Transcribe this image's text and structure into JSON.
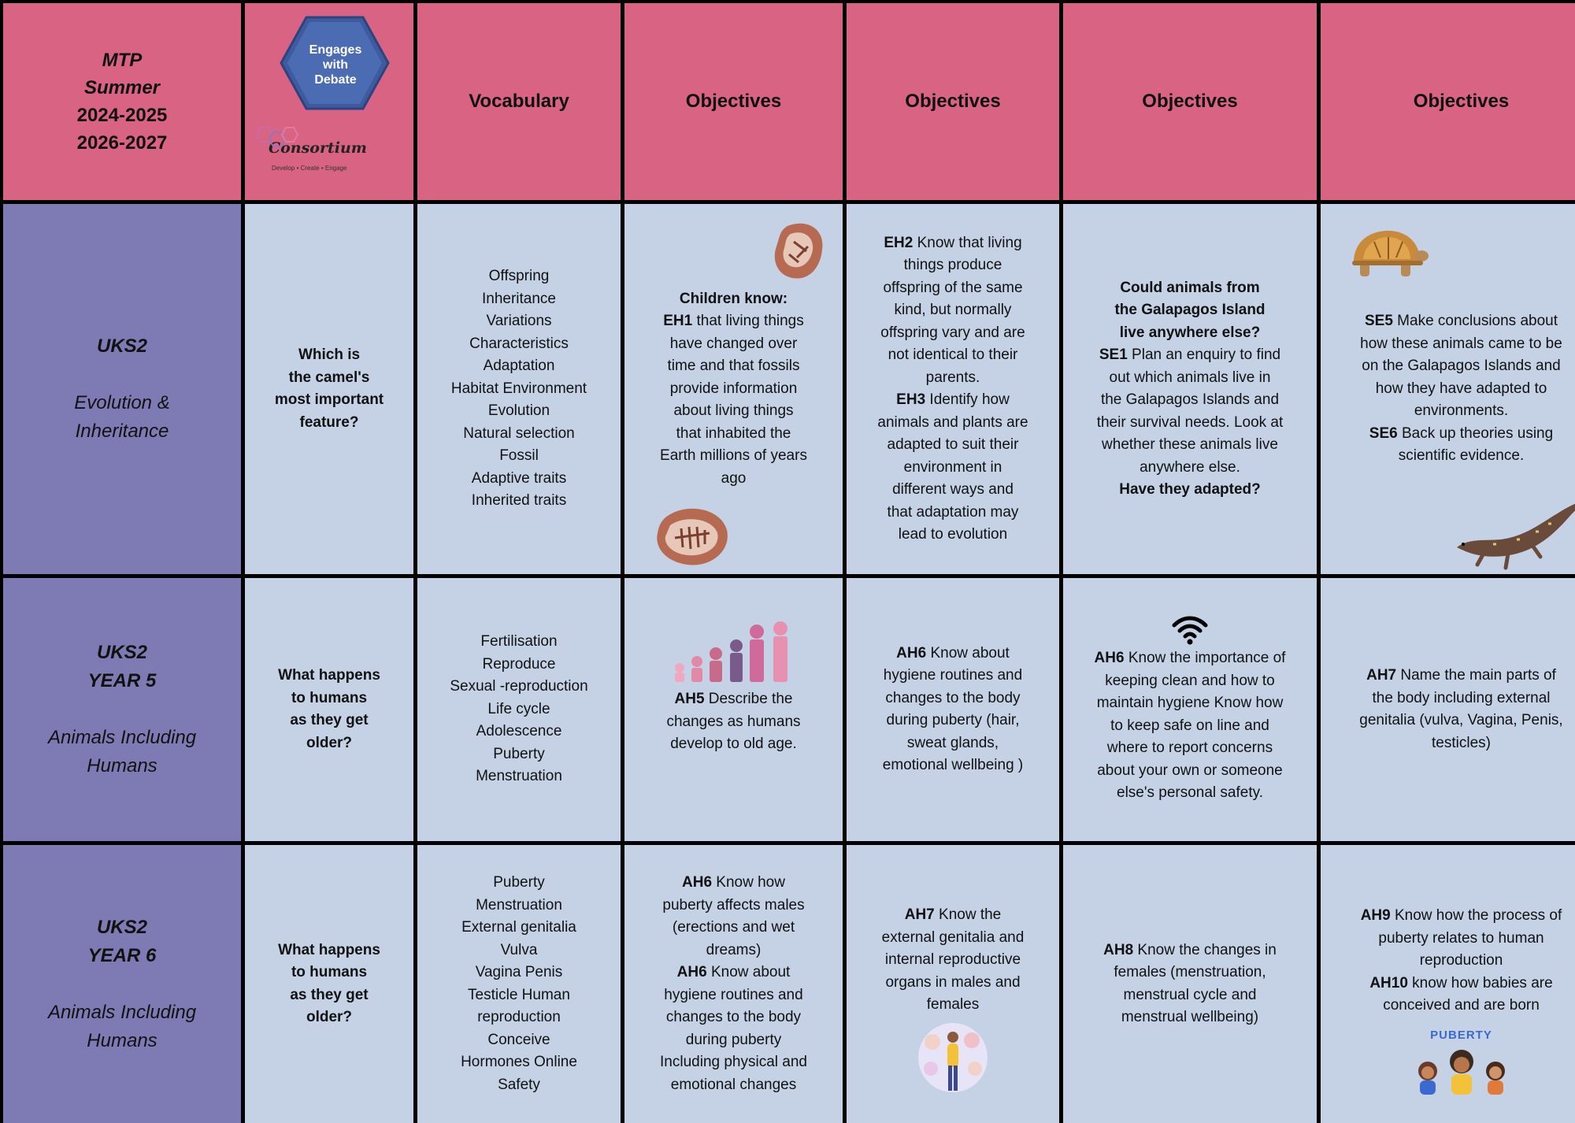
{
  "header": {
    "mtp_lines": [
      "MTP",
      "Summer",
      "2024-2025",
      "2026-2027"
    ],
    "logo": {
      "hex_lines": [
        "Engages",
        "with",
        "Debate"
      ],
      "wordmark": "Consortium",
      "tagline": "Develop • Create • Engage"
    },
    "columns": [
      "Vocabulary",
      "Objectives",
      "Objectives",
      "Objectives",
      "Objectives"
    ]
  },
  "rows": [
    {
      "side": {
        "lines": [
          "UKS2"
        ],
        "topic_lines": [
          "Evolution &",
          "Inheritance"
        ]
      },
      "question_lines": [
        "Which is",
        "the  camel's",
        "most  important",
        "feature?"
      ],
      "vocabulary": [
        "Offspring",
        "Inheritance",
        "Variations",
        "Characteristics",
        "Adaptation",
        "Habitat  Environment",
        "Evolution",
        "Natural  selection",
        "Fossil",
        "Adaptive traits",
        "Inherited traits"
      ],
      "obj1": {
        "lead": "Children know:",
        "code": "EH1",
        "lines": [
          " that living things",
          "have  changed over",
          "time and that  fossils",
          "provide information",
          "about living things",
          "that  inhabited the",
          "Earth millions of  years",
          "ago"
        ]
      },
      "obj2": {
        "blocks": [
          {
            "code": "EH2",
            "lines": [
              " Know that living",
              "things  produce",
              "offspring of the same",
              "kind, but normally",
              "offspring  vary and are",
              "not identical to  their",
              "parents."
            ]
          },
          {
            "code": "EH3",
            "lines": [
              " Identify how",
              "animals and  plants are",
              "adapted to suit  their",
              "environment in",
              "different  ways and",
              "that adaptation may",
              "lead to evolution"
            ]
          }
        ]
      },
      "obj3": {
        "q1_lines": [
          "Could animals from",
          "the  Galapagos Island",
          "live  anywhere else?"
        ],
        "code": "SE1",
        "lines": [
          " Plan an enquiry to find",
          "out  which animals live in",
          "the  Galapagos Islands and",
          "their  survival needs. Look at",
          "whether  these animals live",
          "anywhere  else."
        ],
        "q2": "Have they adapted?"
      },
      "obj4": {
        "blocks": [
          {
            "code": "SE5",
            "lines": [
              " Make conclusions about",
              "how these animals came to be",
              "on the Galapagos Islands and",
              "how they have adapted to",
              "environments."
            ]
          },
          {
            "code": "SE6",
            "lines": [
              " Back up theories using",
              "scientific evidence."
            ]
          }
        ]
      }
    },
    {
      "side": {
        "lines": [
          "UKS2",
          "YEAR 5"
        ],
        "topic_lines": [
          "Animals Including",
          "Humans"
        ]
      },
      "question_lines": [
        "What happens",
        "to humans",
        "as  they get",
        "older?"
      ],
      "vocabulary": [
        "Fertilisation",
        "Reproduce",
        "Sexual -reproduction",
        "Life cycle",
        "Adolescence",
        "Puberty",
        "Menstruation"
      ],
      "obj1": {
        "code": "AH5",
        "lines": [
          " Describe the",
          "changes as  humans",
          "develop to old age."
        ]
      },
      "obj2": {
        "code": "AH6",
        "lines": [
          " Know about",
          "hygiene routines and",
          "changes to the body",
          "during puberty (hair,",
          "sweat glands,",
          "emotional wellbeing )"
        ]
      },
      "obj3": {
        "code": "AH6",
        "lines": [
          " Know the importance of",
          "keeping clean and how to",
          "maintain hygiene Know how",
          "to keep safe on line and",
          "where to report concerns",
          "about your own or someone",
          "else's personal safety."
        ]
      },
      "obj4": {
        "code": "AH7",
        "lines": [
          " Name the main parts of",
          "the body including external",
          "genitalia (vulva, Vagina,  Penis,",
          "testicles)"
        ]
      }
    },
    {
      "side": {
        "lines": [
          "UKS2",
          "YEAR 6"
        ],
        "topic_lines": [
          "Animals Including",
          "Humans"
        ]
      },
      "question_lines": [
        "What happens",
        "to humans",
        "as  they get",
        "older?"
      ],
      "vocabulary": [
        "Puberty",
        "Menstruation",
        "External genitalia",
        "Vulva",
        "Vagina Penis",
        "Testicle Human",
        "reproduction",
        "Conceive",
        "Hormones Online",
        "Safety"
      ],
      "obj1": {
        "blocks": [
          {
            "code": "AH6",
            "lines": [
              " Know how",
              "puberty  affects males",
              "(erections and  wet",
              "dreams)"
            ]
          },
          {
            "code": "AH6",
            "lines": [
              " Know about",
              "hygiene  routines and",
              "changes to the  body",
              "during  puberty",
              "Including physical  and",
              "emotional changes"
            ]
          }
        ]
      },
      "obj2": {
        "code": "AH7",
        "lines": [
          " Know the",
          "external  genitalia and",
          "internal  reproductive",
          "organs in males  and",
          "females"
        ]
      },
      "obj3": {
        "code": "AH8",
        "lines": [
          " Know the changes in",
          "females (menstruation,",
          "menstrual cycle and",
          "menstrual wellbeing)"
        ]
      },
      "obj4": {
        "blocks": [
          {
            "code": "AH9",
            "lines": [
              " Know how the process  of",
              "puberty relates to  human",
              "reproduction"
            ]
          },
          {
            "code": "AH10",
            "lines": [
              " know how babies are",
              "conceived and are born"
            ]
          }
        ],
        "badge": "PUBERTY"
      }
    }
  ],
  "icons": [
    "fossil-icon",
    "dinosaur-fossil-icon",
    "tortoise-icon",
    "lizard-icon",
    "family-ages-icon",
    "wifi-icon",
    "body-organs-icon",
    "puberty-kids-icon"
  ]
}
